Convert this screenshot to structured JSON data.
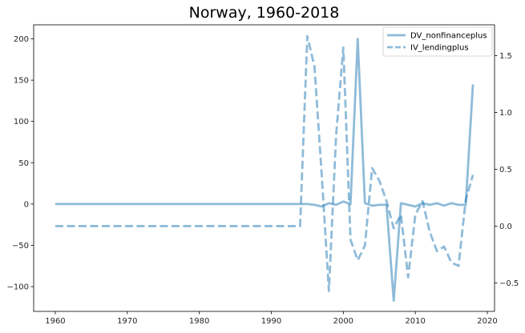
{
  "chart_data": {
    "type": "line",
    "title": "Norway, 1960-2018",
    "xlabel": "",
    "ylabel": "",
    "y2label": "",
    "xlim": [
      1957,
      2021
    ],
    "ylim": [
      -130,
      217
    ],
    "y2lim": [
      -0.75,
      1.77
    ],
    "xticks": [
      1960,
      1970,
      1980,
      1990,
      2000,
      2010,
      2020
    ],
    "yticks": [
      -100,
      -50,
      0,
      50,
      100,
      150,
      200
    ],
    "y2ticks": [
      -0.5,
      0.0,
      0.5,
      1.0,
      1.5
    ],
    "y2tick_labels": [
      "-0.5",
      "0.0",
      "0.5",
      "1.0",
      "1.5"
    ],
    "grid": false,
    "legend_position": "top-right",
    "series": [
      {
        "name": "DV_nonfinanceplus",
        "axis": "left",
        "style": "solid",
        "color": "#1f77b4",
        "x": [
          1960,
          1961,
          1962,
          1963,
          1964,
          1965,
          1966,
          1967,
          1968,
          1969,
          1970,
          1971,
          1972,
          1973,
          1974,
          1975,
          1976,
          1977,
          1978,
          1979,
          1980,
          1981,
          1982,
          1983,
          1984,
          1985,
          1986,
          1987,
          1988,
          1989,
          1990,
          1991,
          1992,
          1993,
          1994,
          1995,
          1996,
          1997,
          1998,
          1999,
          2000,
          2001,
          2002,
          2003,
          2004,
          2005,
          2006,
          2007,
          2008,
          2009,
          2010,
          2011,
          2012,
          2013,
          2014,
          2015,
          2016,
          2017,
          2018
        ],
        "values": [
          0,
          0,
          0,
          0,
          0,
          0,
          0,
          0,
          0,
          0,
          0,
          0,
          0,
          0,
          0,
          0,
          0,
          0,
          0,
          0,
          0,
          0,
          0,
          0,
          0,
          0,
          0,
          0,
          0,
          0,
          0,
          0,
          0,
          0,
          0,
          0,
          -1,
          -3,
          1,
          -1,
          3,
          0,
          200,
          1,
          -2,
          -1,
          -1,
          -117,
          1,
          -1,
          -3,
          1,
          -1,
          1,
          -2,
          1,
          -1,
          -1,
          145
        ]
      },
      {
        "name": "IV_lendingplus",
        "axis": "right",
        "style": "dashed",
        "color": "#1f77b4",
        "x": [
          1960,
          1961,
          1962,
          1963,
          1964,
          1965,
          1966,
          1967,
          1968,
          1969,
          1970,
          1971,
          1972,
          1973,
          1974,
          1975,
          1976,
          1977,
          1978,
          1979,
          1980,
          1981,
          1982,
          1983,
          1984,
          1985,
          1986,
          1987,
          1988,
          1989,
          1990,
          1991,
          1992,
          1993,
          1994,
          1995,
          1996,
          1997,
          1998,
          1999,
          2000,
          2001,
          2002,
          2003,
          2004,
          2005,
          2006,
          2007,
          2008,
          2009,
          2010,
          2011,
          2012,
          2013,
          2014,
          2015,
          2016,
          2017,
          2018
        ],
        "values": [
          0,
          0,
          0,
          0,
          0,
          0,
          0,
          0,
          0,
          0,
          0,
          0,
          0,
          0,
          0,
          0,
          0,
          0,
          0,
          0,
          0,
          0,
          0,
          0,
          0,
          0,
          0,
          0,
          0,
          0,
          0,
          0,
          0,
          0,
          0,
          1.67,
          1.4,
          0.45,
          -0.57,
          0.8,
          1.57,
          -0.12,
          -0.3,
          -0.17,
          0.51,
          0.4,
          0.22,
          -0.02,
          0.1,
          -0.45,
          0.1,
          0.22,
          -0.05,
          -0.22,
          -0.18,
          -0.32,
          -0.35,
          0.23,
          0.45
        ]
      }
    ]
  }
}
